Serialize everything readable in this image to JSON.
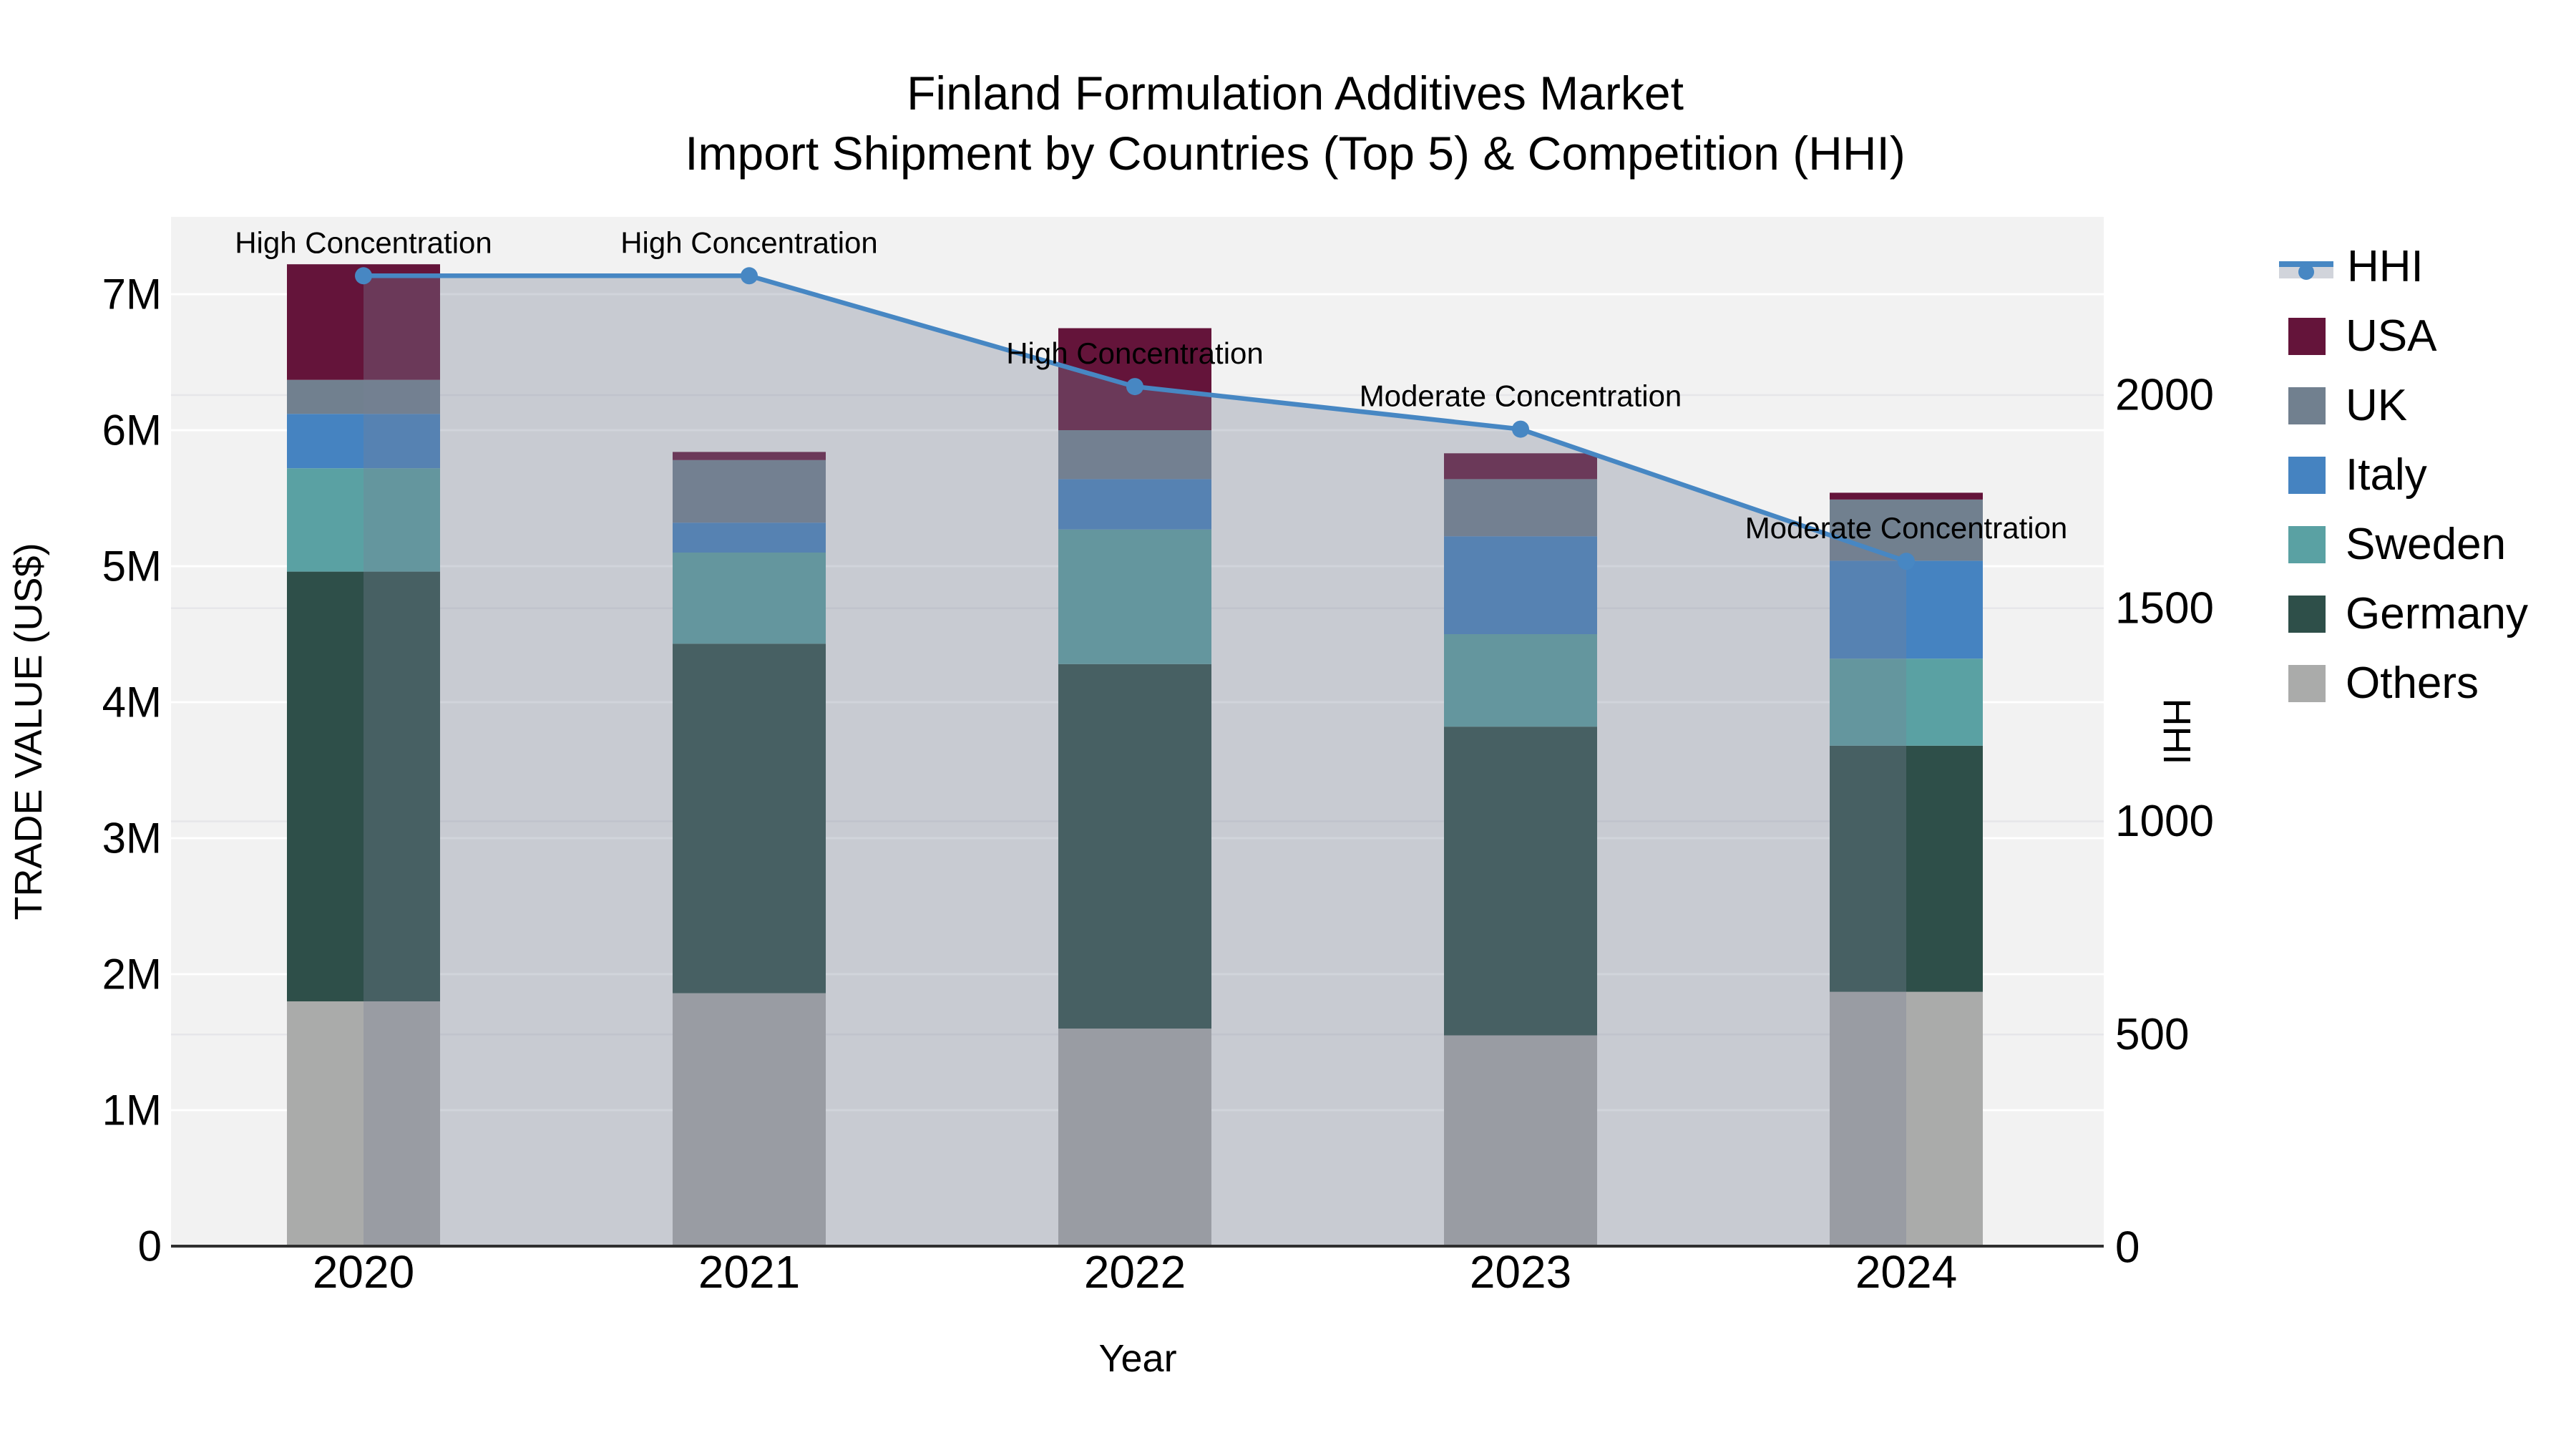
{
  "title": {
    "line1": "Finland Formulation Additives Market",
    "line2": "Import Shipment by Countries (Top 5) & Competition (HHI)"
  },
  "axes": {
    "left": {
      "title": "TRADE VALUE (US$)",
      "ticks": [
        {
          "value": 0,
          "label": "0"
        },
        {
          "value": 1,
          "label": "1M"
        },
        {
          "value": 2,
          "label": "2M"
        },
        {
          "value": 3,
          "label": "3M"
        },
        {
          "value": 4,
          "label": "4M"
        },
        {
          "value": 5,
          "label": "5M"
        },
        {
          "value": 6,
          "label": "6M"
        },
        {
          "value": 7,
          "label": "7M"
        }
      ]
    },
    "right": {
      "title": "HHI",
      "ticks": [
        {
          "value": 0,
          "label": "0"
        },
        {
          "value": 500,
          "label": "500"
        },
        {
          "value": 1000,
          "label": "1000"
        },
        {
          "value": 1500,
          "label": "1500"
        },
        {
          "value": 2000,
          "label": "2000"
        }
      ]
    },
    "x": {
      "title": "Year"
    }
  },
  "legend": {
    "items": [
      {
        "label": "HHI",
        "type": "line"
      },
      {
        "label": "USA",
        "type": "swatch"
      },
      {
        "label": "UK",
        "type": "swatch"
      },
      {
        "label": "Italy",
        "type": "swatch"
      },
      {
        "label": "Sweden",
        "type": "swatch"
      },
      {
        "label": "Germany",
        "type": "swatch"
      },
      {
        "label": "Others",
        "type": "swatch"
      }
    ]
  },
  "chart_data": {
    "type": "bar+line",
    "bar_value_unit": "million US$",
    "categories": [
      "2020",
      "2021",
      "2022",
      "2023",
      "2024"
    ],
    "series": [
      {
        "name": "Others",
        "values": [
          1.8,
          1.86,
          1.6,
          1.55,
          1.87
        ]
      },
      {
        "name": "Germany",
        "values": [
          3.16,
          2.57,
          2.68,
          2.27,
          1.81
        ]
      },
      {
        "name": "Sweden",
        "values": [
          0.76,
          0.67,
          0.99,
          0.68,
          0.64
        ]
      },
      {
        "name": "Italy",
        "values": [
          0.4,
          0.22,
          0.37,
          0.72,
          0.72
        ]
      },
      {
        "name": "UK",
        "values": [
          0.25,
          0.46,
          0.36,
          0.42,
          0.45
        ]
      },
      {
        "name": "USA",
        "values": [
          0.85,
          0.06,
          0.75,
          0.19,
          0.05
        ]
      }
    ],
    "bar_totals": [
      7.22,
      5.84,
      6.75,
      5.83,
      5.54
    ],
    "line_series": {
      "name": "HHI",
      "axis": "right",
      "values": [
        2280,
        2280,
        2020,
        1920,
        1610
      ]
    },
    "annotations": [
      {
        "category": "2020",
        "text": "High Concentration"
      },
      {
        "category": "2021",
        "text": "High Concentration"
      },
      {
        "category": "2022",
        "text": "High Concentration"
      },
      {
        "category": "2023",
        "text": "Moderate Concentration"
      },
      {
        "category": "2024",
        "text": "Moderate Concentration"
      }
    ],
    "ylim_left": [
      0,
      7.57
    ],
    "ylim_right": [
      0,
      2415
    ],
    "legend_position": "right",
    "grid": true
  },
  "colors": {
    "series": {
      "USA": "#64143a",
      "UK": "#71808f",
      "Italy": "#4583c1",
      "Sweden": "#5aa1a3",
      "Germany": "#2e4f49",
      "Others": "#aaabaa"
    },
    "hhi_line": "#4787c3",
    "area_fill": "rgba(119,128,150,0.34)",
    "plot_bg": "#f2f2f2",
    "grid_left": "#ffffff",
    "grid_right": "#e6e6e9",
    "axis_line": "#2f2f2f",
    "text": "#000000"
  }
}
